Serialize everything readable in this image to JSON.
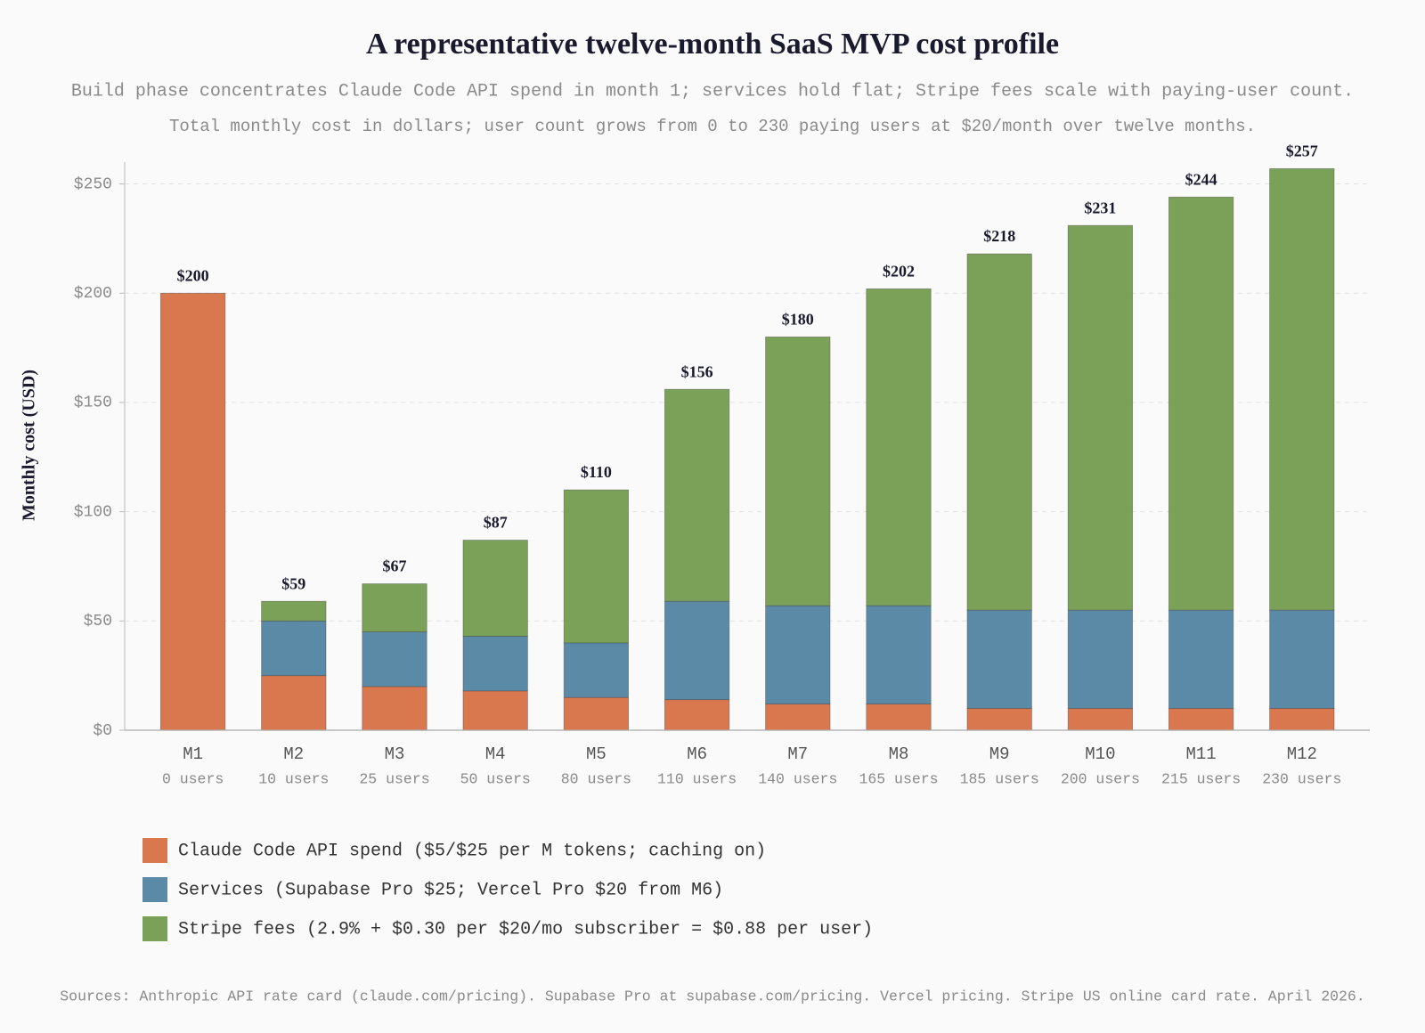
{
  "chart_data": {
    "type": "stacked_bar",
    "title": "A representative twelve-month SaaS MVP cost profile",
    "subtitle": [
      "Build phase concentrates Claude Code API spend in month 1; services hold flat; Stripe fees scale with paying-user count.",
      "Total monthly cost in dollars; user count grows from 0 to 230 paying users at $20/month over twelve months."
    ],
    "ylabel": "Monthly cost (USD)",
    "categories": [
      "M1",
      "M2",
      "M3",
      "M4",
      "M5",
      "M6",
      "M7",
      "M8",
      "M9",
      "M10",
      "M11",
      "M12"
    ],
    "category_sublabels": [
      "0 users",
      "10 users",
      "25 users",
      "50 users",
      "80 users",
      "110 users",
      "140 users",
      "165 users",
      "185 users",
      "200 users",
      "215 users",
      "230 users"
    ],
    "series": [
      {
        "name": "Claude Code API spend ($5/$25 per M tokens; caching on)",
        "color": "#d9774f",
        "values": [
          200,
          25,
          20,
          18,
          15,
          14,
          12,
          12,
          10,
          10,
          10,
          10
        ]
      },
      {
        "name": "Services (Supabase Pro $25; Vercel Pro $20 from M6)",
        "color": "#5b8aa7",
        "values": [
          0,
          25,
          25,
          25,
          25,
          45,
          45,
          45,
          45,
          45,
          45,
          45
        ]
      },
      {
        "name": "Stripe fees (2.9% + $0.30 per $20/mo subscriber = $0.88 per user)",
        "color": "#7ba159",
        "values": [
          0,
          9,
          22,
          44,
          70,
          97,
          123,
          145,
          163,
          176,
          189,
          202
        ]
      }
    ],
    "totals": [
      200,
      59,
      67,
      87,
      110,
      156,
      180,
      202,
      218,
      231,
      244,
      257
    ],
    "total_labels": [
      "$200",
      "$59",
      "$67",
      "$87",
      "$110",
      "$156",
      "$180",
      "$202",
      "$218",
      "$231",
      "$244",
      "$257"
    ],
    "ylim": [
      0,
      260
    ],
    "yticks": [
      {
        "value": 0,
        "label": "$0"
      },
      {
        "value": 50,
        "label": "$50"
      },
      {
        "value": 100,
        "label": "$100"
      },
      {
        "value": 150,
        "label": "$150"
      },
      {
        "value": 200,
        "label": "$200"
      },
      {
        "value": 250,
        "label": "$250"
      }
    ],
    "grid": true,
    "source": "Sources: Anthropic API rate card (claude.com/pricing). Supabase Pro at supabase.com/pricing. Vercel pricing. Stripe US online card rate. April 2026."
  }
}
